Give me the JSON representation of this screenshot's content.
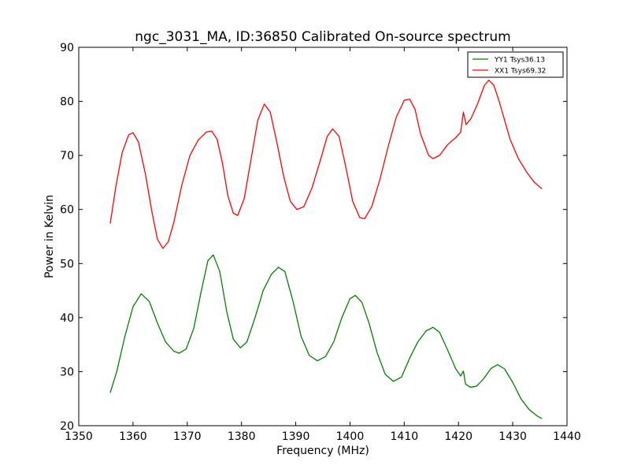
{
  "chart_data": {
    "type": "line",
    "title": "ngc_3031_MA, ID:36850 Calibrated On-source spectrum",
    "xlabel": "Frequency (MHz)",
    "ylabel": "Power in Kelvin",
    "xlim": [
      1350,
      1440
    ],
    "ylim": [
      20,
      90
    ],
    "xticks": [
      "1350",
      "1360",
      "1370",
      "1380",
      "1390",
      "1400",
      "1410",
      "1420",
      "1430",
      "1440"
    ],
    "yticks": [
      "20",
      "30",
      "40",
      "50",
      "60",
      "70",
      "80",
      "90"
    ],
    "grid": false,
    "legend_position": "top-right",
    "series": [
      {
        "name": "YY1 Tsys36.13",
        "color": "#008000",
        "points": [
          [
            1355.8,
            26.1
          ],
          [
            1357.0,
            30.0
          ],
          [
            1358.5,
            36.5
          ],
          [
            1360.0,
            42.0
          ],
          [
            1361.5,
            44.4
          ],
          [
            1363.0,
            43.0
          ],
          [
            1364.5,
            39.0
          ],
          [
            1366.0,
            35.5
          ],
          [
            1367.5,
            33.8
          ],
          [
            1368.5,
            33.4
          ],
          [
            1369.8,
            34.2
          ],
          [
            1371.2,
            38.0
          ],
          [
            1372.5,
            44.5
          ],
          [
            1373.8,
            50.5
          ],
          [
            1374.8,
            51.6
          ],
          [
            1376.0,
            48.5
          ],
          [
            1377.3,
            41.0
          ],
          [
            1378.5,
            36.0
          ],
          [
            1379.8,
            34.4
          ],
          [
            1381.0,
            35.5
          ],
          [
            1382.5,
            40.0
          ],
          [
            1384.0,
            45.0
          ],
          [
            1385.5,
            48.0
          ],
          [
            1386.8,
            49.3
          ],
          [
            1388.0,
            48.5
          ],
          [
            1389.5,
            43.0
          ],
          [
            1391.0,
            36.5
          ],
          [
            1392.5,
            33.0
          ],
          [
            1394.0,
            32.0
          ],
          [
            1395.5,
            32.8
          ],
          [
            1397.0,
            35.5
          ],
          [
            1398.5,
            40.0
          ],
          [
            1400.0,
            43.5
          ],
          [
            1401.0,
            44.1
          ],
          [
            1402.2,
            42.8
          ],
          [
            1403.5,
            39.0
          ],
          [
            1405.0,
            33.5
          ],
          [
            1406.5,
            29.5
          ],
          [
            1408.0,
            28.2
          ],
          [
            1409.5,
            29.0
          ],
          [
            1411.0,
            32.5
          ],
          [
            1412.5,
            35.5
          ],
          [
            1414.0,
            37.5
          ],
          [
            1415.3,
            38.2
          ],
          [
            1416.5,
            37.3
          ],
          [
            1418.0,
            34.0
          ],
          [
            1419.5,
            30.5
          ],
          [
            1420.4,
            29.2
          ],
          [
            1420.9,
            30.1
          ],
          [
            1421.3,
            27.7
          ],
          [
            1422.2,
            27.1
          ],
          [
            1423.3,
            27.3
          ],
          [
            1424.5,
            28.5
          ],
          [
            1426.0,
            30.6
          ],
          [
            1427.2,
            31.3
          ],
          [
            1428.5,
            30.5
          ],
          [
            1430.0,
            28.0
          ],
          [
            1431.5,
            25.0
          ],
          [
            1433.0,
            23.0
          ],
          [
            1434.5,
            21.8
          ],
          [
            1435.4,
            21.3
          ]
        ]
      },
      {
        "name": "XX1 Tsys69.32",
        "color": "#ff0000",
        "points": [
          [
            1355.8,
            57.4
          ],
          [
            1356.8,
            64.0
          ],
          [
            1358.0,
            70.5
          ],
          [
            1359.2,
            73.8
          ],
          [
            1360.0,
            74.2
          ],
          [
            1361.0,
            72.5
          ],
          [
            1362.3,
            66.5
          ],
          [
            1363.5,
            59.5
          ],
          [
            1364.5,
            54.5
          ],
          [
            1365.5,
            52.8
          ],
          [
            1366.5,
            54.0
          ],
          [
            1367.5,
            57.5
          ],
          [
            1369.0,
            64.5
          ],
          [
            1370.5,
            70.0
          ],
          [
            1372.0,
            72.8
          ],
          [
            1373.5,
            74.3
          ],
          [
            1374.5,
            74.5
          ],
          [
            1375.5,
            73.0
          ],
          [
            1376.5,
            68.5
          ],
          [
            1377.5,
            62.5
          ],
          [
            1378.5,
            59.3
          ],
          [
            1379.3,
            58.9
          ],
          [
            1380.5,
            62.0
          ],
          [
            1381.8,
            69.5
          ],
          [
            1383.0,
            76.5
          ],
          [
            1384.2,
            79.5
          ],
          [
            1385.3,
            78.0
          ],
          [
            1386.5,
            72.5
          ],
          [
            1387.8,
            66.0
          ],
          [
            1389.0,
            61.5
          ],
          [
            1390.2,
            60.0
          ],
          [
            1391.5,
            60.5
          ],
          [
            1393.0,
            64.0
          ],
          [
            1394.5,
            69.0
          ],
          [
            1395.8,
            73.5
          ],
          [
            1396.8,
            74.9
          ],
          [
            1398.0,
            73.5
          ],
          [
            1399.3,
            67.5
          ],
          [
            1400.5,
            61.5
          ],
          [
            1401.8,
            58.5
          ],
          [
            1402.7,
            58.3
          ],
          [
            1404.0,
            60.5
          ],
          [
            1405.5,
            65.5
          ],
          [
            1407.0,
            71.5
          ],
          [
            1408.5,
            77.0
          ],
          [
            1410.0,
            80.2
          ],
          [
            1411.0,
            80.4
          ],
          [
            1412.0,
            78.5
          ],
          [
            1413.0,
            74.0
          ],
          [
            1414.5,
            70.0
          ],
          [
            1415.3,
            69.4
          ],
          [
            1416.5,
            70.0
          ],
          [
            1418.0,
            72.0
          ],
          [
            1419.5,
            73.3
          ],
          [
            1420.4,
            74.3
          ],
          [
            1420.9,
            78.0
          ],
          [
            1421.4,
            75.7
          ],
          [
            1422.3,
            76.8
          ],
          [
            1423.5,
            79.5
          ],
          [
            1424.8,
            83.0
          ],
          [
            1425.6,
            83.9
          ],
          [
            1426.5,
            83.0
          ],
          [
            1427.5,
            80.0
          ],
          [
            1428.5,
            76.5
          ],
          [
            1429.5,
            73.0
          ],
          [
            1431.0,
            69.5
          ],
          [
            1432.5,
            67.0
          ],
          [
            1434.0,
            65.0
          ],
          [
            1435.4,
            63.8
          ]
        ]
      }
    ]
  }
}
